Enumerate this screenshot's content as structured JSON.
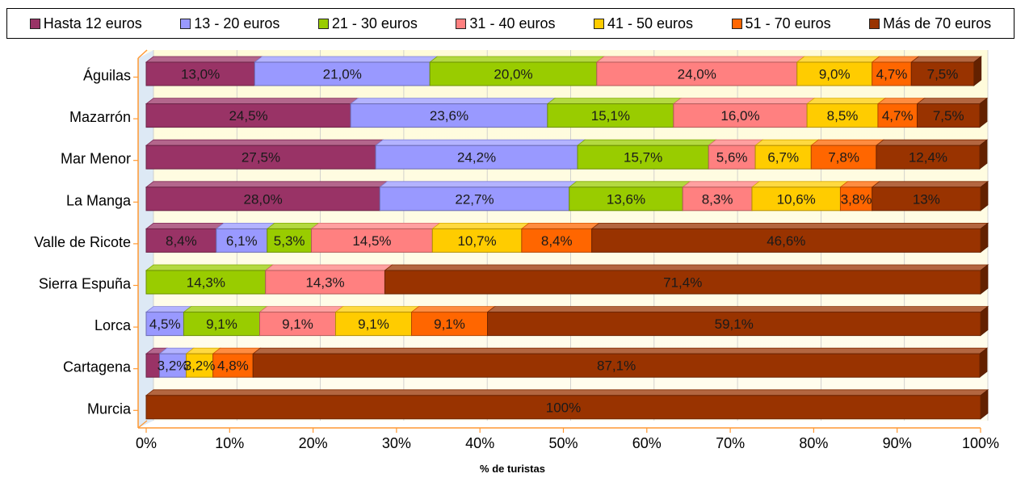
{
  "chart_data": {
    "type": "bar",
    "orientation": "horizontal",
    "stacked": "percent",
    "title": "",
    "xlabel": "% de turistas",
    "ylabel": "",
    "xlim": [
      0,
      100
    ],
    "xticks": [
      "0%",
      "10%",
      "20%",
      "30%",
      "40%",
      "50%",
      "60%",
      "70%",
      "80%",
      "90%",
      "100%"
    ],
    "legend_position": "top",
    "categories": [
      "Águilas",
      "Mazarrón",
      "Mar Menor",
      "La Manga",
      "Valle de Ricote",
      "Sierra Espuña",
      "Lorca",
      "Cartagena",
      "Murcia"
    ],
    "series": [
      {
        "name": "Hasta 12 euros",
        "color": "#993366",
        "values": [
          13.0,
          24.5,
          27.5,
          28.0,
          8.4,
          0,
          0,
          1.6,
          0
        ],
        "labels": [
          "13,0%",
          "24,5%",
          "27,5%",
          "28,0%",
          "8,4%",
          "",
          "",
          "",
          ""
        ]
      },
      {
        "name": "13 - 20 euros",
        "color": "#9999FF",
        "values": [
          21.0,
          23.6,
          24.2,
          22.7,
          6.1,
          0,
          4.5,
          3.2,
          0
        ],
        "labels": [
          "21,0%",
          "23,6%",
          "24,2%",
          "22,7%",
          "6,1%",
          "",
          "4,5%",
          "3,2%",
          ""
        ]
      },
      {
        "name": "21 - 30 euros",
        "color": "#99CC00",
        "values": [
          20.0,
          15.1,
          15.7,
          13.6,
          5.3,
          14.3,
          9.1,
          0,
          0
        ],
        "labels": [
          "20,0%",
          "15,1%",
          "15,7%",
          "13,6%",
          "5,3%",
          "14,3%",
          "9,1%",
          "",
          ""
        ]
      },
      {
        "name": "31 - 40 euros",
        "color": "#FF8080",
        "values": [
          24.0,
          16.0,
          5.6,
          8.3,
          14.5,
          14.3,
          9.1,
          0,
          0
        ],
        "labels": [
          "24,0%",
          "16,0%",
          "5,6%",
          "8,3%",
          "14,5%",
          "14,3%",
          "9,1%",
          "",
          ""
        ]
      },
      {
        "name": "41 - 50 euros",
        "color": "#FFCC00",
        "values": [
          9.0,
          8.5,
          6.7,
          10.6,
          10.7,
          0,
          9.1,
          3.2,
          0
        ],
        "labels": [
          "9,0%",
          "8,5%",
          "6,7%",
          "10,6%",
          "10,7%",
          "",
          "9,1%",
          "3,2%",
          ""
        ]
      },
      {
        "name": "51 - 70 euros",
        "color": "#FF6600",
        "values": [
          4.7,
          4.7,
          7.8,
          3.8,
          8.4,
          0,
          9.1,
          4.8,
          0
        ],
        "labels": [
          "4,7%",
          "4,7%",
          "7,8%",
          "3,8%",
          "8,4%",
          "",
          "9,1%",
          "4,8%",
          ""
        ]
      },
      {
        "name": "Más de 70 euros",
        "color": "#993300",
        "values": [
          7.5,
          7.5,
          12.4,
          13.0,
          46.6,
          71.4,
          59.1,
          87.1,
          100
        ],
        "labels": [
          "7,5%",
          "7,5%",
          "12,4%",
          "13%",
          "46,6%",
          "71,4%",
          "59,1%",
          "87,1%",
          "100%"
        ]
      }
    ]
  }
}
